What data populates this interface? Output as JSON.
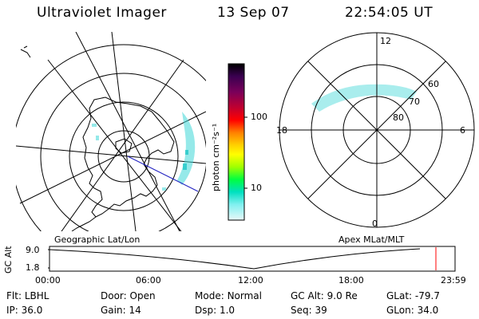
{
  "header": {
    "instrument": "Ultraviolet Imager",
    "date": "13 Sep 07",
    "time": "22:54:05 UT"
  },
  "colorbar": {
    "unit_label": "photon cm⁻²s⁻¹",
    "ticks": [
      "100",
      "10"
    ],
    "colors": [
      "#000000",
      "#3a0050",
      "#7a005a",
      "#c00030",
      "#ff0000",
      "#ff8000",
      "#ffd000",
      "#ffff00",
      "#a0ff00",
      "#00ff40",
      "#00e0c0",
      "#80f0f0",
      "#e0f8f8"
    ]
  },
  "left_map": {
    "label": "Geographic Lat/Lon",
    "aurora_color": "#40d8d8"
  },
  "right_map": {
    "label": "Apex MLat/MLT",
    "mlt_labels": {
      "top": "12",
      "left": "18",
      "right": "6",
      "bottom": "0"
    },
    "lat_labels": [
      "60",
      "70",
      "80"
    ]
  },
  "timeline": {
    "axis_label": "GC Alt",
    "y_ticks": [
      "9.0",
      "1.8"
    ],
    "x_ticks": [
      "00:00",
      "06:00",
      "12:00",
      "18:00",
      "23:59"
    ],
    "current_marker_color": "#ff0000"
  },
  "info": {
    "row1": [
      {
        "label": "Flt:",
        "value": "LBHL"
      },
      {
        "label": "Door:",
        "value": "Open"
      },
      {
        "label": "Mode:",
        "value": "Normal"
      },
      {
        "label": "GC Alt:",
        "value": "9.0 Re"
      },
      {
        "label": "GLat:",
        "value": "-79.7"
      }
    ],
    "row2": [
      {
        "label": "IP:",
        "value": "36.0"
      },
      {
        "label": "Gain:",
        "value": "14"
      },
      {
        "label": "Dsp:",
        "value": "1.0"
      },
      {
        "label": "Seq:",
        "value": "39"
      },
      {
        "label": "GLon:",
        "value": "34.0"
      }
    ]
  }
}
